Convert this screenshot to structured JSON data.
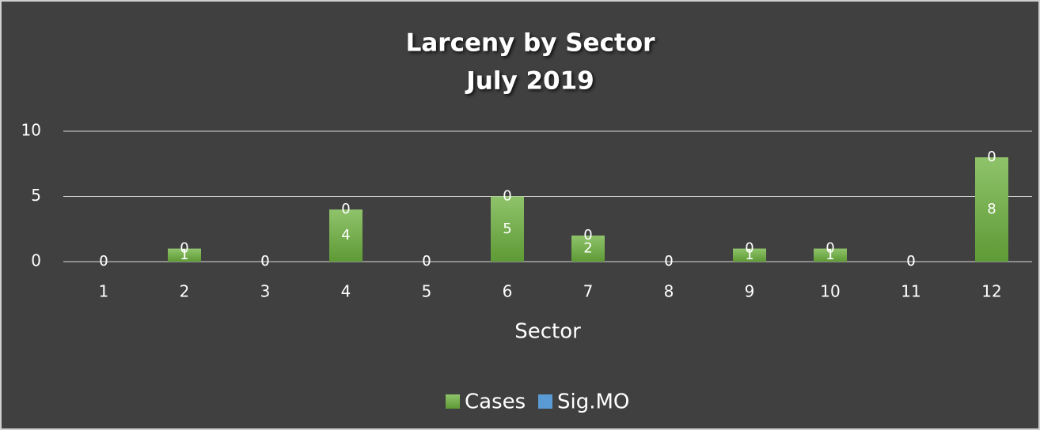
{
  "chart_data": {
    "type": "bar",
    "stacked": true,
    "title": "Larceny by Sector",
    "subtitle": "July 2019",
    "x_label": "Sector",
    "categories": [
      "1",
      "2",
      "3",
      "4",
      "5",
      "6",
      "7",
      "8",
      "9",
      "10",
      "11",
      "12"
    ],
    "series": [
      {
        "name": "Cases",
        "color": "#70ad47",
        "values": [
          0,
          1,
          0,
          4,
          0,
          5,
          2,
          0,
          1,
          1,
          0,
          8
        ]
      },
      {
        "name": "Sig.MO",
        "color": "#5b9bd5",
        "values": [
          0,
          0,
          0,
          0,
          0,
          0,
          0,
          0,
          0,
          0,
          0,
          0
        ]
      }
    ],
    "ylim": [
      0,
      10
    ],
    "yticks": [
      0,
      5,
      10
    ],
    "grid": true,
    "legend": "bottom"
  }
}
